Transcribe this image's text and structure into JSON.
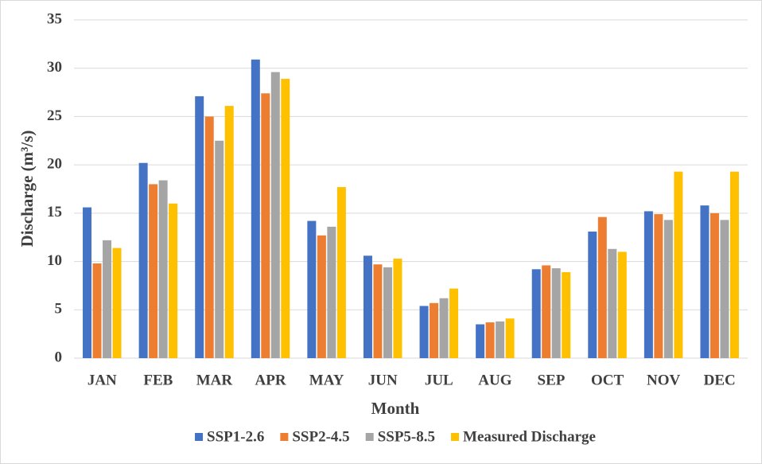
{
  "chart_data": {
    "type": "bar",
    "y_label": "Discharge (m³/s)",
    "x_label": "Month",
    "categories": [
      "JAN",
      "FEB",
      "MAR",
      "APR",
      "MAY",
      "JUN",
      "JUL",
      "AUG",
      "SEP",
      "OCT",
      "NOV",
      "DEC"
    ],
    "series": [
      {
        "name": "SSP1-2.6",
        "color": "#4472c4",
        "values": [
          15.6,
          20.2,
          27.1,
          30.9,
          14.2,
          10.6,
          5.4,
          3.5,
          9.2,
          13.1,
          15.2,
          15.8
        ]
      },
      {
        "name": "SSP2-4.5",
        "color": "#ed7d31",
        "values": [
          9.8,
          18.0,
          25.0,
          27.4,
          12.7,
          9.7,
          5.7,
          3.7,
          9.6,
          14.6,
          14.9,
          15.0
        ]
      },
      {
        "name": "SSP5-8.5",
        "color": "#a5a5a5",
        "values": [
          12.2,
          18.4,
          22.5,
          29.6,
          13.6,
          9.4,
          6.2,
          3.8,
          9.3,
          11.3,
          14.3,
          14.3
        ]
      },
      {
        "name": "Measured Discharge",
        "color": "#ffc000",
        "values": [
          11.4,
          16.0,
          26.1,
          28.9,
          17.7,
          10.3,
          7.2,
          4.1,
          8.9,
          11.0,
          19.3,
          19.3
        ]
      }
    ],
    "ylim": [
      0,
      35
    ],
    "yticks": [
      0,
      5,
      10,
      15,
      20,
      25,
      30,
      35
    ],
    "grid": true,
    "legend": "bottom"
  }
}
